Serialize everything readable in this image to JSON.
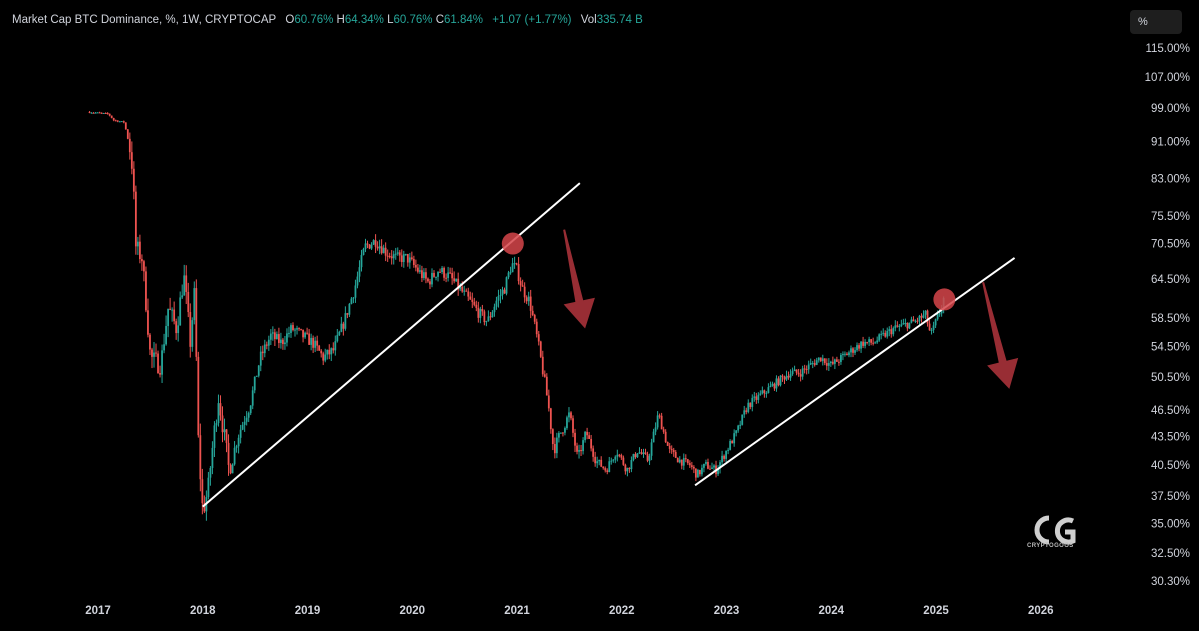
{
  "header": {
    "title": "Market Cap BTC Dominance, %, 1W, CRYPTOCAP",
    "open_label": "O",
    "open": "60.76%",
    "high_label": "H",
    "high": "64.34%",
    "low_label": "L",
    "low": "60.76%",
    "close_label": "C",
    "close": "61.84%",
    "change": "+1.07 (+1.77%)",
    "vol_label": "Vol",
    "vol": "335.74",
    "vol_unit": "B"
  },
  "unit_button": "%",
  "logo": {
    "text": "CRYPTOGOOS",
    "mark": "CG"
  },
  "chart_data": {
    "type": "candlestick",
    "y_ticks": [
      "115.00%",
      "107.00%",
      "99.00%",
      "91.00%",
      "83.00%",
      "75.50%",
      "70.50%",
      "64.50%",
      "58.50%",
      "54.50%",
      "50.50%",
      "46.50%",
      "43.50%",
      "40.50%",
      "37.50%",
      "35.00%",
      "32.50%",
      "30.30%"
    ],
    "x_ticks": [
      "2017",
      "2018",
      "2019",
      "2020",
      "2021",
      "2022",
      "2023",
      "2024",
      "2025",
      "2026"
    ],
    "ylim": [
      30.3,
      115
    ],
    "y_scale": "log",
    "up_color": "#26a69a",
    "down_color": "#ef5350",
    "series_path": [
      [
        2016.9,
        98
      ],
      [
        2017.1,
        97.5
      ],
      [
        2017.15,
        96
      ],
      [
        2017.25,
        95.5
      ],
      [
        2017.3,
        90
      ],
      [
        2017.33,
        85
      ],
      [
        2017.36,
        70
      ],
      [
        2017.42,
        68
      ],
      [
        2017.5,
        53
      ],
      [
        2017.6,
        52
      ],
      [
        2017.67,
        60
      ],
      [
        2017.75,
        57
      ],
      [
        2017.82,
        65
      ],
      [
        2017.88,
        55
      ],
      [
        2017.92,
        62
      ],
      [
        2017.96,
        42
      ],
      [
        2018.0,
        36
      ],
      [
        2018.05,
        38
      ],
      [
        2018.15,
        48
      ],
      [
        2018.25,
        40
      ],
      [
        2018.35,
        44
      ],
      [
        2018.45,
        47
      ],
      [
        2018.55,
        53
      ],
      [
        2018.65,
        56
      ],
      [
        2018.75,
        55
      ],
      [
        2018.85,
        57
      ],
      [
        2018.95,
        56
      ],
      [
        2019.05,
        55
      ],
      [
        2019.15,
        53
      ],
      [
        2019.25,
        54
      ],
      [
        2019.35,
        58
      ],
      [
        2019.45,
        63
      ],
      [
        2019.55,
        70
      ],
      [
        2019.65,
        71
      ],
      [
        2019.75,
        69
      ],
      [
        2019.85,
        68
      ],
      [
        2019.95,
        68
      ],
      [
        2020.05,
        66
      ],
      [
        2020.15,
        64
      ],
      [
        2020.25,
        66
      ],
      [
        2020.35,
        65
      ],
      [
        2020.45,
        63
      ],
      [
        2020.55,
        61
      ],
      [
        2020.65,
        59
      ],
      [
        2020.72,
        58
      ],
      [
        2020.8,
        61
      ],
      [
        2020.88,
        63
      ],
      [
        2020.95,
        67
      ],
      [
        2021.0,
        66
      ],
      [
        2021.05,
        63
      ],
      [
        2021.12,
        61
      ],
      [
        2021.2,
        55
      ],
      [
        2021.3,
        47
      ],
      [
        2021.35,
        42
      ],
      [
        2021.42,
        44
      ],
      [
        2021.5,
        46
      ],
      [
        2021.58,
        41
      ],
      [
        2021.66,
        44
      ],
      [
        2021.75,
        41
      ],
      [
        2021.85,
        40
      ],
      [
        2021.95,
        42
      ],
      [
        2022.05,
        40
      ],
      [
        2022.15,
        42
      ],
      [
        2022.25,
        41
      ],
      [
        2022.35,
        46
      ],
      [
        2022.45,
        42
      ],
      [
        2022.55,
        41
      ],
      [
        2022.65,
        40.5
      ],
      [
        2022.72,
        39.5
      ],
      [
        2022.8,
        40.5
      ],
      [
        2022.9,
        40
      ],
      [
        2023.0,
        42
      ],
      [
        2023.1,
        44
      ],
      [
        2023.2,
        47
      ],
      [
        2023.3,
        48
      ],
      [
        2023.4,
        49
      ],
      [
        2023.5,
        50
      ],
      [
        2023.6,
        51
      ],
      [
        2023.7,
        51
      ],
      [
        2023.8,
        52
      ],
      [
        2023.9,
        53
      ],
      [
        2024.0,
        52
      ],
      [
        2024.1,
        53
      ],
      [
        2024.2,
        54
      ],
      [
        2024.3,
        55
      ],
      [
        2024.4,
        55
      ],
      [
        2024.5,
        56
      ],
      [
        2024.6,
        57
      ],
      [
        2024.7,
        57.5
      ],
      [
        2024.8,
        58
      ],
      [
        2024.9,
        59
      ],
      [
        2024.95,
        56
      ],
      [
        2025.0,
        58
      ],
      [
        2025.05,
        60
      ],
      [
        2025.08,
        61.8
      ]
    ],
    "trendlines": [
      {
        "from": [
          2018.0,
          36.5
        ],
        "to": [
          2021.6,
          82
        ]
      },
      {
        "from": [
          2022.7,
          38.5
        ],
        "to": [
          2025.75,
          68
        ]
      }
    ],
    "markers": [
      {
        "type": "circle",
        "at": [
          2020.96,
          70.5
        ]
      },
      {
        "type": "circle",
        "at": [
          2025.08,
          61.3
        ]
      }
    ],
    "arrows": [
      {
        "direction": "down",
        "from": [
          2021.45,
          73
        ],
        "to": [
          2021.65,
          57
        ]
      },
      {
        "direction": "down",
        "from": [
          2025.45,
          64
        ],
        "to": [
          2025.7,
          49
        ]
      }
    ]
  }
}
